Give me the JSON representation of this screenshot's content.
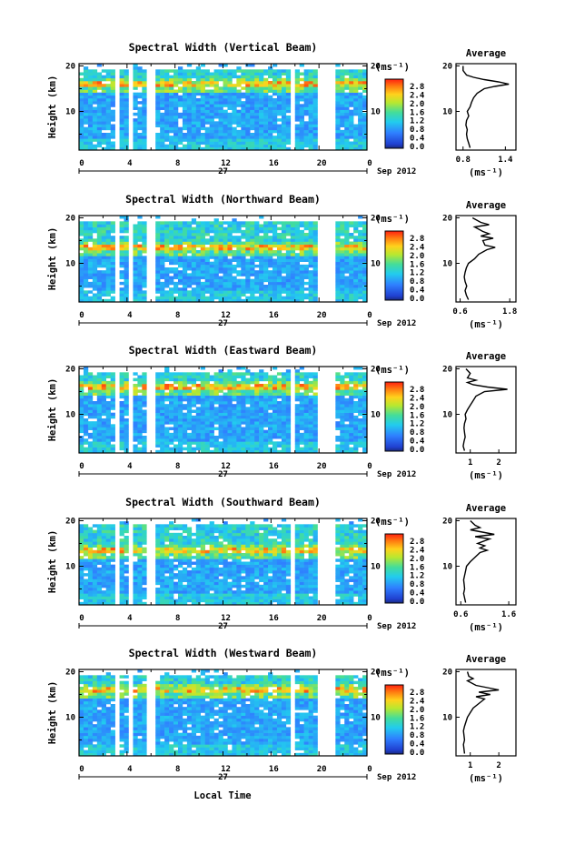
{
  "figure": {
    "xlabel": "Local Time",
    "date_label": "Sep 2012",
    "day_label": "27",
    "ylabel": "Height (km)",
    "colorbar_unit": "(ms⁻¹)",
    "avg_title": "Average",
    "avg_xlabel": "(ms⁻¹)"
  },
  "chart_data": [
    {
      "type": "heatmap",
      "title": "Spectral Width (Vertical Beam)",
      "xlabel": "Local Time",
      "ylabel": "Height (km)",
      "x_ticks": [
        "0",
        "4",
        "8",
        "12",
        "16",
        "20",
        "0"
      ],
      "y_ticks": [
        "10",
        "20"
      ],
      "xlim": [
        0,
        24
      ],
      "ylim": [
        1.5,
        20.5
      ],
      "colorbar": {
        "label": "(ms⁻¹)",
        "range": [
          0,
          2.8
        ],
        "ticks": [
          "2.8",
          "2.4",
          "2.0",
          "1.6",
          "1.2",
          "0.8",
          "0.4",
          "0.0"
        ]
      },
      "gaps_hours": [
        [
          3.0,
          3.4
        ],
        [
          4.0,
          4.4
        ],
        [
          5.6,
          6.4
        ],
        [
          17.6,
          17.9
        ],
        [
          19.8,
          21.4
        ]
      ],
      "tropopause_km": 16.0,
      "top_km": 19.0,
      "average_profile": {
        "title": "Average",
        "xlabel": "(ms⁻¹)",
        "x_ticks": [
          "0.8",
          "1.4"
        ],
        "x_tick_values": [
          0.8,
          1.4
        ],
        "xlim": [
          0.7,
          1.55
        ],
        "y_ticks": [
          "10",
          "20"
        ],
        "height_km": [
          2,
          3,
          4,
          5,
          6,
          7,
          8,
          9,
          10,
          11,
          12,
          13,
          14,
          15,
          15.5,
          16,
          16.5,
          17,
          17.5,
          18,
          19,
          20
        ],
        "value": [
          0.9,
          0.88,
          0.86,
          0.85,
          0.86,
          0.84,
          0.85,
          0.88,
          0.86,
          0.9,
          0.92,
          0.95,
          1.0,
          1.1,
          1.25,
          1.45,
          1.3,
          1.1,
          0.95,
          0.85,
          0.8,
          0.8
        ]
      }
    },
    {
      "type": "heatmap",
      "title": "Spectral Width (Northward Beam)",
      "xlabel": "Local Time",
      "ylabel": "Height (km)",
      "x_ticks": [
        "0",
        "4",
        "8",
        "12",
        "16",
        "20",
        "0"
      ],
      "y_ticks": [
        "10",
        "20"
      ],
      "xlim": [
        0,
        24
      ],
      "ylim": [
        1.5,
        20.5
      ],
      "colorbar": {
        "label": "(ms⁻¹)",
        "range": [
          0,
          2.8
        ],
        "ticks": [
          "2.8",
          "2.4",
          "2.0",
          "1.6",
          "1.2",
          "0.8",
          "0.4",
          "0.0"
        ]
      },
      "gaps_hours": [
        [
          3.0,
          3.4
        ],
        [
          4.0,
          4.4
        ],
        [
          5.6,
          6.4
        ],
        [
          19.8,
          21.4
        ]
      ],
      "tropopause_km": 13.5,
      "top_km": 19.0,
      "average_profile": {
        "title": "Average",
        "xlabel": "(ms⁻¹)",
        "x_ticks": [
          "0.6",
          "1.8"
        ],
        "x_tick_values": [
          0.6,
          1.8
        ],
        "xlim": [
          0.5,
          1.95
        ],
        "y_ticks": [
          "10",
          "20"
        ],
        "height_km": [
          2,
          3,
          4,
          5,
          6,
          7,
          8,
          9,
          10,
          11,
          12,
          13,
          13.5,
          14,
          15,
          15.5,
          16,
          16.5,
          17,
          18,
          18.5,
          19,
          20
        ],
        "value": [
          0.8,
          0.75,
          0.72,
          0.76,
          0.72,
          0.7,
          0.72,
          0.75,
          0.8,
          0.95,
          1.05,
          1.25,
          1.45,
          1.2,
          1.15,
          1.4,
          1.1,
          1.3,
          1.15,
          0.95,
          1.3,
          1.1,
          0.9
        ]
      }
    },
    {
      "type": "heatmap",
      "title": "Spectral Width (Eastward Beam)",
      "xlabel": "Local Time",
      "ylabel": "Height (km)",
      "x_ticks": [
        "0",
        "4",
        "8",
        "12",
        "16",
        "20",
        "0"
      ],
      "y_ticks": [
        "10",
        "20"
      ],
      "xlim": [
        0,
        24
      ],
      "ylim": [
        1.5,
        20.5
      ],
      "colorbar": {
        "label": "(ms⁻¹)",
        "range": [
          0,
          2.8
        ],
        "ticks": [
          "2.8",
          "2.4",
          "2.0",
          "1.6",
          "1.2",
          "0.8",
          "0.4",
          "0.0"
        ]
      },
      "gaps_hours": [
        [
          3.0,
          3.4
        ],
        [
          4.0,
          4.4
        ],
        [
          5.6,
          6.4
        ],
        [
          17.6,
          17.9
        ],
        [
          19.8,
          21.4
        ]
      ],
      "tropopause_km": 16.0,
      "top_km": 19.0,
      "average_profile": {
        "title": "Average",
        "xlabel": "(ms⁻¹)",
        "x_ticks": [
          "1",
          "2"
        ],
        "x_tick_values": [
          1,
          2
        ],
        "xlim": [
          0.5,
          2.6
        ],
        "y_ticks": [
          "10",
          "20"
        ],
        "height_km": [
          2,
          3,
          4,
          5,
          6,
          7,
          8,
          9,
          10,
          11,
          12,
          13,
          14,
          15,
          15.5,
          16,
          16.5,
          17,
          17.5,
          18,
          19,
          20
        ],
        "value": [
          0.8,
          0.75,
          0.78,
          0.82,
          0.8,
          0.78,
          0.8,
          0.85,
          0.82,
          0.9,
          1.0,
          1.1,
          1.2,
          1.5,
          2.3,
          1.6,
          1.1,
          0.9,
          1.2,
          0.9,
          1.0,
          0.85
        ]
      }
    },
    {
      "type": "heatmap",
      "title": "Spectral Width (Southward Beam)",
      "xlabel": "Local Time",
      "ylabel": "Height (km)",
      "x_ticks": [
        "0",
        "4",
        "8",
        "12",
        "16",
        "20",
        "0"
      ],
      "y_ticks": [
        "10",
        "20"
      ],
      "xlim": [
        0,
        24
      ],
      "ylim": [
        1.5,
        20.5
      ],
      "colorbar": {
        "label": "(ms⁻¹)",
        "range": [
          0,
          2.8
        ],
        "ticks": [
          "2.8",
          "2.4",
          "2.0",
          "1.6",
          "1.2",
          "0.8",
          "0.4",
          "0.0"
        ]
      },
      "gaps_hours": [
        [
          3.0,
          3.4
        ],
        [
          4.0,
          4.4
        ],
        [
          5.6,
          6.4
        ],
        [
          17.6,
          17.9
        ],
        [
          19.8,
          21.4
        ]
      ],
      "tropopause_km": 13.5,
      "top_km": 19.0,
      "average_profile": {
        "title": "Average",
        "xlabel": "(ms⁻¹)",
        "x_ticks": [
          "0.6",
          "1.6"
        ],
        "x_tick_values": [
          0.6,
          1.6
        ],
        "xlim": [
          0.5,
          1.75
        ],
        "y_ticks": [
          "10",
          "20"
        ],
        "height_km": [
          2,
          3,
          4,
          5,
          6,
          7,
          8,
          9,
          10,
          11,
          12,
          13,
          13.5,
          14,
          14.5,
          15,
          16,
          16.5,
          17,
          18,
          18.5,
          19,
          20
        ],
        "value": [
          0.7,
          0.68,
          0.66,
          0.68,
          0.67,
          0.66,
          0.68,
          0.7,
          0.72,
          0.8,
          0.9,
          1.0,
          1.15,
          1.0,
          1.1,
          0.95,
          1.2,
          0.9,
          1.3,
          0.8,
          1.0,
          0.9,
          0.8
        ]
      }
    },
    {
      "type": "heatmap",
      "title": "Spectral Width (Westward Beam)",
      "xlabel": "Local Time",
      "ylabel": "Height (km)",
      "x_ticks": [
        "0",
        "4",
        "8",
        "12",
        "16",
        "20",
        "0"
      ],
      "y_ticks": [
        "10",
        "20"
      ],
      "xlim": [
        0,
        24
      ],
      "ylim": [
        1.5,
        20.5
      ],
      "colorbar": {
        "label": "(ms⁻¹)",
        "range": [
          0,
          2.8
        ],
        "ticks": [
          "2.8",
          "2.4",
          "2.0",
          "1.6",
          "1.2",
          "0.8",
          "0.4",
          "0.0"
        ]
      },
      "gaps_hours": [
        [
          3.0,
          3.4
        ],
        [
          4.0,
          4.4
        ],
        [
          5.6,
          6.4
        ],
        [
          17.6,
          17.9
        ],
        [
          19.8,
          21.4
        ]
      ],
      "tropopause_km": 16.0,
      "top_km": 19.0,
      "average_profile": {
        "title": "Average",
        "xlabel": "(ms⁻¹)",
        "x_ticks": [
          "1",
          "2"
        ],
        "x_tick_values": [
          1,
          2
        ],
        "xlim": [
          0.5,
          2.6
        ],
        "y_ticks": [
          "10",
          "20"
        ],
        "height_km": [
          2,
          3,
          4,
          5,
          6,
          7,
          8,
          9,
          10,
          11,
          12,
          13,
          14,
          14.5,
          15,
          15.5,
          16,
          17,
          18,
          18.5,
          19,
          20
        ],
        "value": [
          0.8,
          0.78,
          0.76,
          0.8,
          0.78,
          0.76,
          0.8,
          0.85,
          0.9,
          1.0,
          1.1,
          1.3,
          1.5,
          1.2,
          1.7,
          1.3,
          2.0,
          1.2,
          0.9,
          1.1,
          0.95,
          0.9
        ]
      }
    }
  ]
}
